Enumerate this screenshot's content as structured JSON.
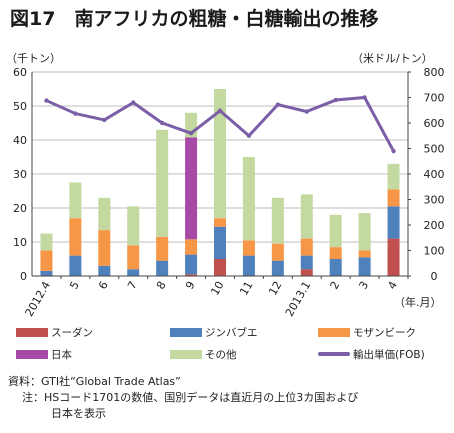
{
  "figure_title": "図17　南アフリカの粗糖・白糖輸出の推移",
  "chart_data": {
    "type": "bar",
    "stacked": true,
    "categories": [
      "2012.4",
      "5",
      "6",
      "7",
      "8",
      "9",
      "10",
      "11",
      "12",
      "2013.1",
      "2",
      "3",
      "4"
    ],
    "x_unit_label": "（年.月）",
    "y_left_label": "（千トン）",
    "y_right_label": "（米ドル/トン）",
    "y_left_range": [
      0,
      60
    ],
    "y_left_ticks": [
      "0",
      "10",
      "20",
      "30",
      "40",
      "50",
      "60"
    ],
    "y_right_range": [
      0,
      800
    ],
    "y_right_ticks": [
      "0",
      "100",
      "200",
      "300",
      "400",
      "500",
      "600",
      "700",
      "800"
    ],
    "grid": true,
    "series": [
      {
        "name": "スーダン",
        "color": "#c0504d",
        "values": [
          0,
          0,
          0,
          0,
          0,
          0.5,
          5,
          0,
          0,
          2,
          0,
          0,
          11
        ]
      },
      {
        "name": "ジンバブエ",
        "color": "#4f81bd",
        "values": [
          1.5,
          6,
          3,
          2,
          4.5,
          5.8,
          9.5,
          6,
          4.5,
          4,
          5,
          5.5,
          9.5
        ]
      },
      {
        "name": "モザンビーク",
        "color": "#f79646",
        "values": [
          6,
          11,
          10.5,
          7,
          7,
          4.5,
          2.5,
          4.5,
          5,
          5,
          3.5,
          2,
          5
        ]
      },
      {
        "name": "日本",
        "color": "#a54aa5",
        "values": [
          0,
          0,
          0,
          0,
          0,
          30,
          0,
          0,
          0,
          0,
          0,
          0,
          0
        ]
      },
      {
        "name": "その他",
        "color": "#c4d9a0",
        "values": [
          5,
          10.5,
          9.5,
          11.5,
          31.5,
          7.2,
          38,
          24.5,
          13.5,
          13,
          9.5,
          11,
          7.5
        ]
      }
    ],
    "line_series": {
      "name": "輸出単価(FOB)",
      "color": "#7b5ea7",
      "axis": "right",
      "values": [
        688,
        637,
        612,
        680,
        600,
        560,
        648,
        550,
        672,
        645,
        690,
        700,
        490
      ]
    },
    "legend_position": "bottom"
  },
  "notes": {
    "source_label": "資料：",
    "source_text": "GTI社“Global Trade Atlas”",
    "note_label": "注：",
    "note_line1": "HSコード1701の数値、国別データは直近月の上位3カ国および",
    "note_line2": "日本を表示"
  }
}
